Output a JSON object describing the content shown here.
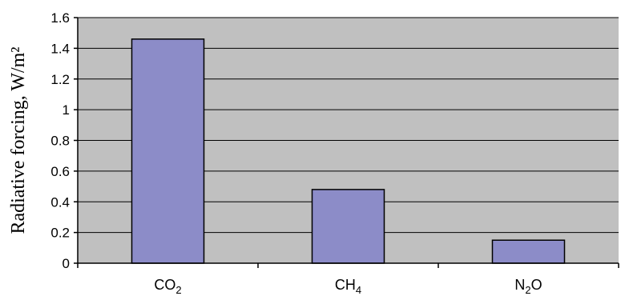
{
  "chart_data": {
    "type": "bar",
    "categories": [
      "CO2",
      "CH4",
      "N2O"
    ],
    "category_labels": [
      {
        "base": "CO",
        "sub": "2",
        "tail": ""
      },
      {
        "base": "CH",
        "sub": "4",
        "tail": ""
      },
      {
        "base": "N",
        "sub": "2",
        "tail": "O"
      }
    ],
    "values": [
      1.46,
      0.48,
      0.15
    ],
    "title": "",
    "xlabel": "",
    "ylabel": "Radiative forcing,  W/m²",
    "ylim": [
      0,
      1.6
    ],
    "yticks": [
      0,
      0.2,
      0.4,
      0.6,
      0.8,
      1,
      1.2,
      1.4,
      1.6
    ],
    "ytick_labels": [
      "0",
      "0.2",
      "0.4",
      "0.6",
      "0.8",
      "1",
      "1.2",
      "1.4",
      "1.6"
    ],
    "grid": true,
    "legend": "none",
    "colors": {
      "plot_background": "#c0c0c0",
      "bar_fill": "#8c8cc8",
      "bar_stroke": "#000000",
      "grid": "#000000"
    }
  }
}
